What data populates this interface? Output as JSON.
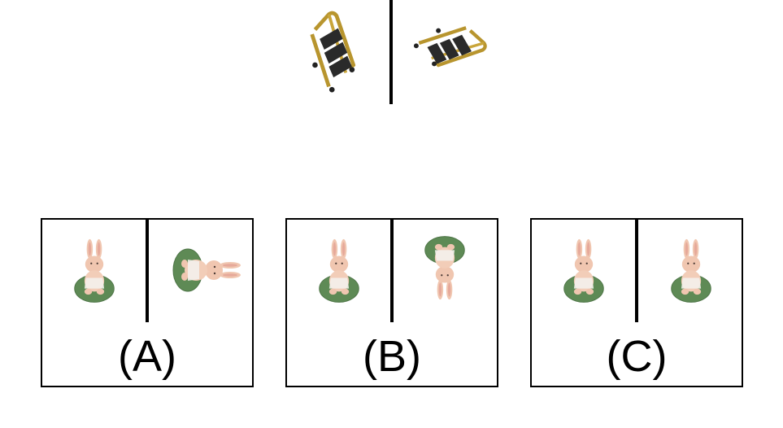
{
  "reference": {
    "left_object": "stepladder-icon",
    "right_object": "stepladder-icon"
  },
  "options": [
    {
      "label": "(A)",
      "left_object": "bunny-figure-icon",
      "right_object": "bunny-figure-icon"
    },
    {
      "label": "(B)",
      "left_object": "bunny-figure-icon",
      "right_object": "bunny-figure-icon"
    },
    {
      "label": "(C)",
      "left_object": "bunny-figure-icon",
      "right_object": "bunny-figure-icon"
    }
  ],
  "colors": {
    "ladder_frame": "#b8952e",
    "ladder_step": "#2a2a2a",
    "bunny_body": "#f0c6b0",
    "bunny_base": "#5e8a55",
    "line": "#000000"
  }
}
